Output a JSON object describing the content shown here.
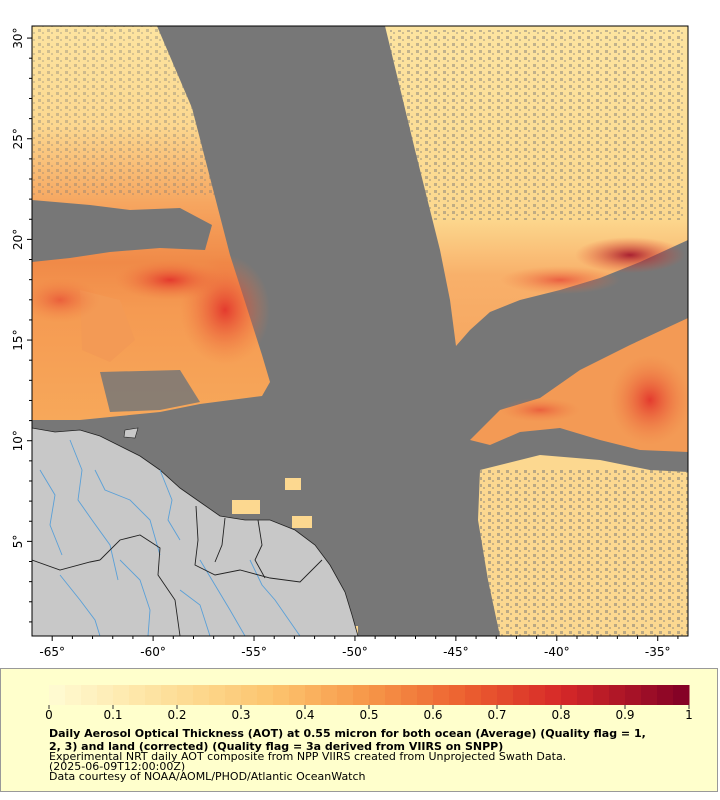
{
  "map": {
    "x_ticks": [
      "-65°",
      "-60°",
      "-55°",
      "-50°",
      "-45°",
      "-40°",
      "-35°"
    ],
    "y_ticks": [
      "30°",
      "25°",
      "20°",
      "15°",
      "10°",
      "5°"
    ],
    "lon_range": [
      -66,
      -33.5
    ],
    "lat_range": [
      0.3,
      30.6
    ],
    "colors": {
      "no_data": "#777777",
      "land": "#c8c8c8",
      "coast": "#222222",
      "rivers": "#5aa0d8",
      "low": "#fde4a0",
      "mid": "#f7a85a",
      "high": "#e8442a",
      "max": "#8b0a1e"
    }
  },
  "legend": {
    "tick_labels": [
      "0",
      "0.1",
      "0.2",
      "0.3",
      "0.4",
      "0.5",
      "0.6",
      "0.7",
      "0.8",
      "0.9",
      "1"
    ],
    "range": [
      0,
      1
    ],
    "caption": {
      "line1": "Daily Aerosol Optical Thickness (AOT) at 0.55 micron for both ocean (Average) (Quality flag = 1,",
      "line2": "2, 3) and land (corrected) (Quality flag = 3a derived from VIIRS on SNPP)",
      "line3": "Experimental NRT daily AOT composite from NPP VIIRS created from Unprojected Swath Data.",
      "line4": "(2025-06-09T12:00:00Z)",
      "line5": "Data courtesy of NOAA/AOML/PHOD/Atlantic OceanWatch"
    }
  }
}
